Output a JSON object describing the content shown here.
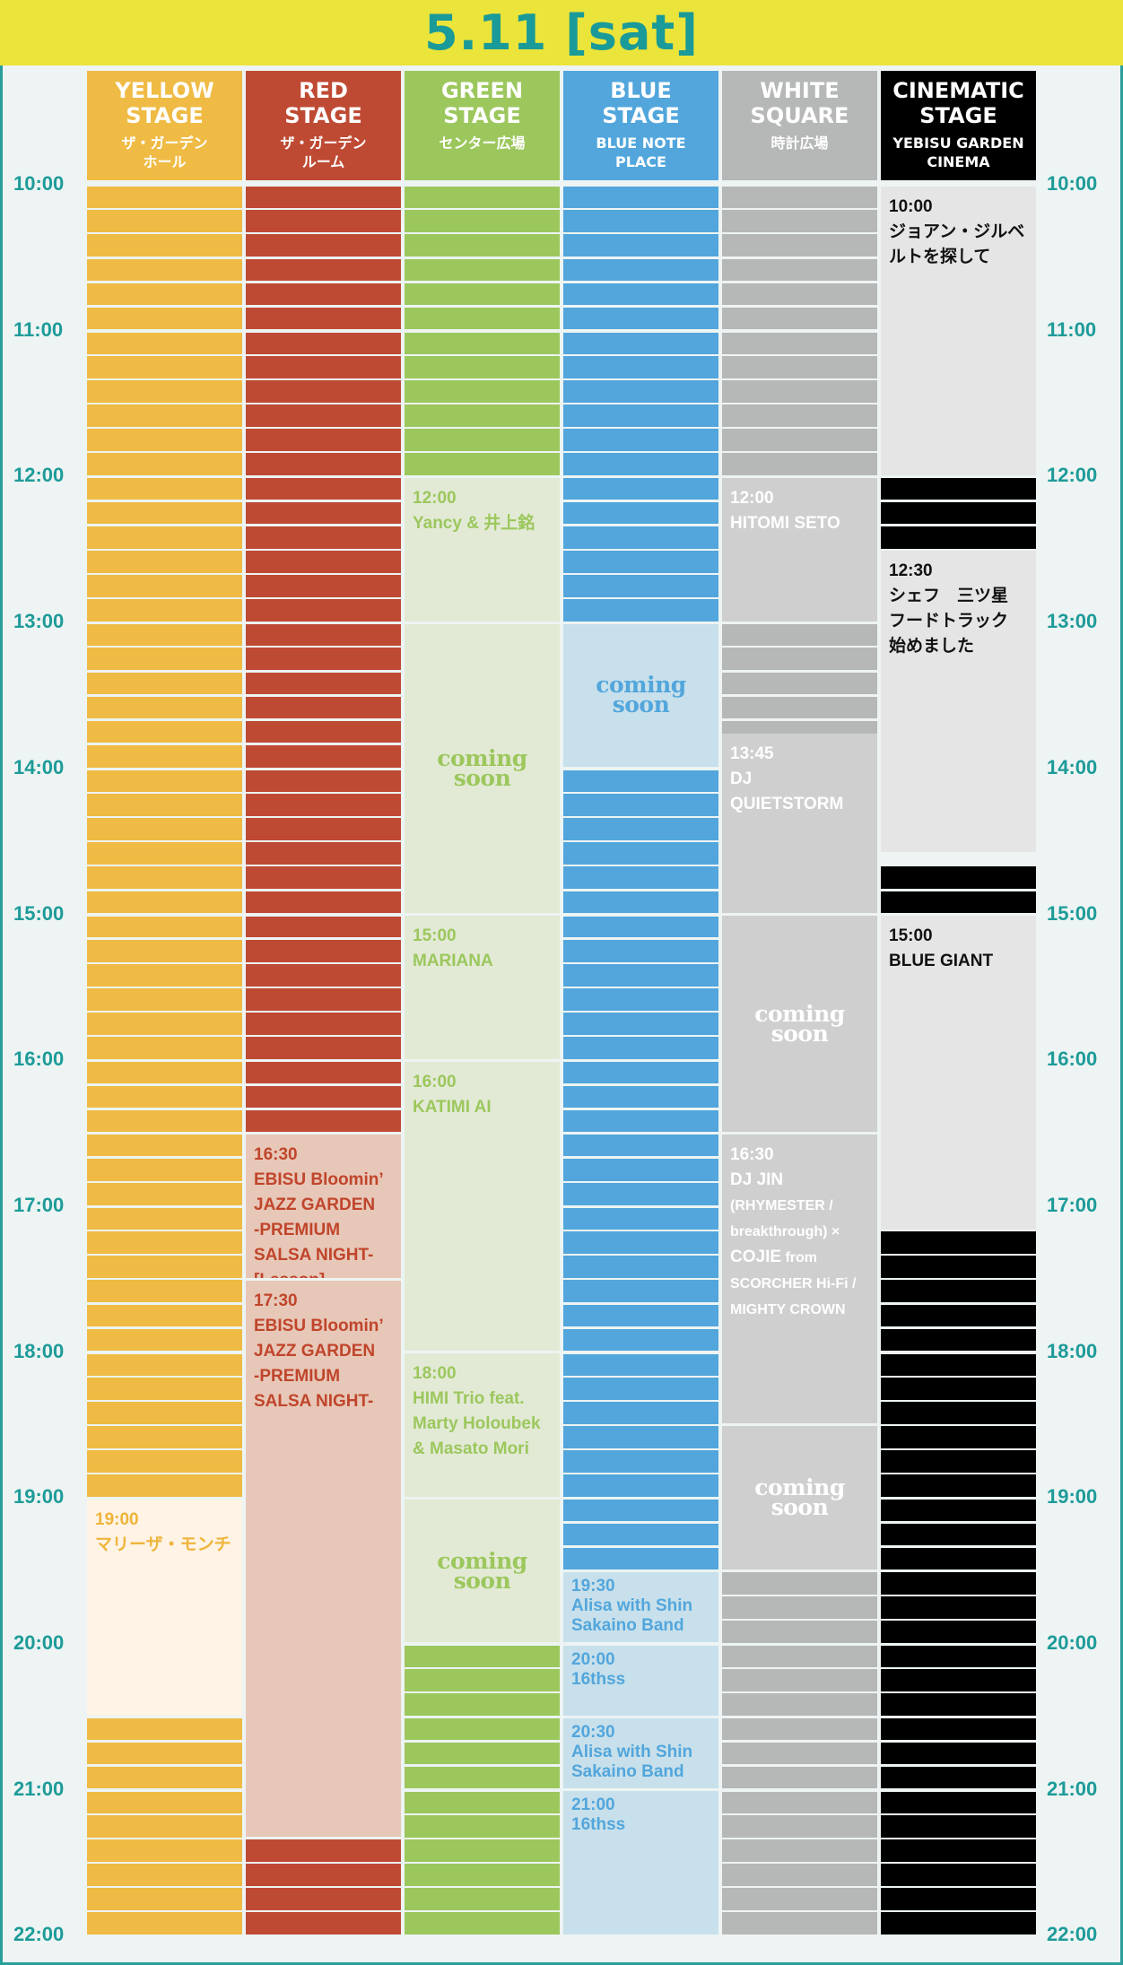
{
  "header": {
    "title": "5.11 [sat]"
  },
  "timeline": {
    "labels": [
      "10:00",
      "11:00",
      "12:00",
      "13:00",
      "14:00",
      "15:00",
      "16:00",
      "17:00",
      "18:00",
      "19:00",
      "20:00",
      "21:00",
      "22:00"
    ]
  },
  "stages": [
    {
      "id": "yellow",
      "name": "YELLOW\nSTAGE",
      "venue": "ザ・ガーデン\nホール",
      "color": "#efbb45",
      "events": [
        {
          "start": "19:00",
          "end": "20:30",
          "time": "19:00",
          "title": "マリーザ・モンチ",
          "bg": "#fef3e4",
          "fg": "#efb43a"
        }
      ],
      "soon": []
    },
    {
      "id": "red",
      "name": "RED\nSTAGE",
      "venue": "ザ・ガーデン\nルーム",
      "color": "#bf4a33",
      "events": [
        {
          "start": "16:30",
          "end": "17:30",
          "time": "16:30",
          "title": "EBISU Bloomin’\nJAZZ GARDEN\n-PREMIUM\nSALSA NIGHT-\n[Lesson]",
          "bg": "#e7c7b7",
          "fg": "#c0452b"
        },
        {
          "start": "17:30",
          "end": "21:20",
          "time": "17:30",
          "title": "EBISU Bloomin’\nJAZZ GARDEN\n-PREMIUM\nSALSA NIGHT-",
          "bg": "#e7c7b7",
          "fg": "#c0452b"
        }
      ],
      "soon": []
    },
    {
      "id": "green",
      "name": "GREEN\nSTAGE",
      "venue": "センター広場",
      "color": "#9cc75d",
      "events": [
        {
          "start": "12:00",
          "end": "13:00",
          "time": "12:00",
          "title": "Yancy & 井上銘",
          "bg": "#e2ead5",
          "fg": "#9cc75d"
        },
        {
          "start": "15:00",
          "end": "16:00",
          "time": "15:00",
          "title": "MARIANA",
          "bg": "#e2ead5",
          "fg": "#9cc75d"
        },
        {
          "start": "16:00",
          "end": "18:00",
          "time": "16:00",
          "title": "KATIMI AI",
          "bg": "#e2ead5",
          "fg": "#9cc75d"
        },
        {
          "start": "18:00",
          "end": "19:00",
          "time": "18:00",
          "title": "HIMI Trio feat.\nMarty Holoubek\n& Masato Mori",
          "bg": "#e2ead5",
          "fg": "#9cc75d"
        }
      ],
      "soon": [
        {
          "start": "13:00",
          "end": "15:00",
          "text": "coming\nsoon",
          "bg": "#e2ead5",
          "fg": "#9cc75d"
        },
        {
          "start": "19:00",
          "end": "20:00",
          "text": "coming\nsoon",
          "bg": "#e2ead5",
          "fg": "#9cc75d"
        }
      ]
    },
    {
      "id": "blue",
      "name": "BLUE\nSTAGE",
      "venue": "BLUE NOTE\nPLACE",
      "color": "#52a6dc",
      "events": [
        {
          "start": "19:30",
          "end": "20:00",
          "time": "19:30",
          "title": "Alisa with Shin\nSakaino Band",
          "bg": "#c8e0eb",
          "fg": "#52a6dc",
          "compact": true
        },
        {
          "start": "20:00",
          "end": "20:30",
          "time": "20:00",
          "title": "16thss",
          "bg": "#c8e0eb",
          "fg": "#52a6dc",
          "compact": true
        },
        {
          "start": "20:30",
          "end": "21:00",
          "time": "20:30",
          "title": "Alisa with Shin\nSakaino Band",
          "bg": "#c8e0eb",
          "fg": "#52a6dc",
          "compact": true
        },
        {
          "start": "21:00",
          "end": "22:00",
          "time": "21:00",
          "title": "16thss",
          "bg": "#c8e0eb",
          "fg": "#52a6dc",
          "compact": true
        }
      ],
      "soon": [
        {
          "start": "13:00",
          "end": "14:00",
          "text": "coming\nsoon",
          "bg": "#c8e0eb",
          "fg": "#52a6dc"
        }
      ]
    },
    {
      "id": "white",
      "name": "WHITE\nSQUARE",
      "venue": "時計広場",
      "color": "#b6b7b7",
      "events": [
        {
          "start": "12:00",
          "end": "13:00",
          "time": "12:00",
          "title": "HITOMI SETO",
          "bg": "#cfcfcf",
          "fg": "#ffffff"
        },
        {
          "start": "13:45",
          "end": "15:00",
          "time": "13:45",
          "title": "DJ\nQUIETSTORM",
          "bg": "#cfcfcf",
          "fg": "#ffffff"
        },
        {
          "start": "16:30",
          "end": "18:30",
          "time": "16:30",
          "title": "DJ JIN",
          "note": "(RHYMESTER /\nbreakthrough) × ",
          "title2": "COJIE",
          "note2": " from\nSCORCHER Hi-Fi /\nMIGHTY CROWN",
          "bg": "#cfcfcf",
          "fg": "#ffffff"
        }
      ],
      "soon": [
        {
          "start": "15:00",
          "end": "16:30",
          "text": "coming\nsoon",
          "bg": "#cfcfcf",
          "fg": "#ffffff"
        },
        {
          "start": "18:30",
          "end": "19:30",
          "text": "coming\nsoon",
          "bg": "#cfcfcf",
          "fg": "#ffffff"
        }
      ]
    },
    {
      "id": "cinematic",
      "name": "CINEMATIC\nSTAGE",
      "venue": "YEBISU GARDEN\nCINEMA",
      "color": "#000000",
      "events": [
        {
          "start": "10:00",
          "end": "12:00",
          "time": "10:00",
          "title": "ジョアン・ジルベ\nルトを探して",
          "bg": "#e5e5e5",
          "fg": "#111111"
        },
        {
          "start": "12:30",
          "end": "14:35",
          "time": "12:30",
          "title": "シェフ　三ツ星\nフードトラック\n始めました",
          "bg": "#e5e5e5",
          "fg": "#111111"
        },
        {
          "start": "15:00",
          "end": "17:10",
          "time": "15:00",
          "title": "BLUE GIANT",
          "bg": "#e5e5e5",
          "fg": "#111111"
        }
      ],
      "soon": []
    }
  ],
  "colors": {
    "accent": "#1a9a98",
    "header_bg": "#ebe43a",
    "frame_bg": "#edf4f3"
  }
}
